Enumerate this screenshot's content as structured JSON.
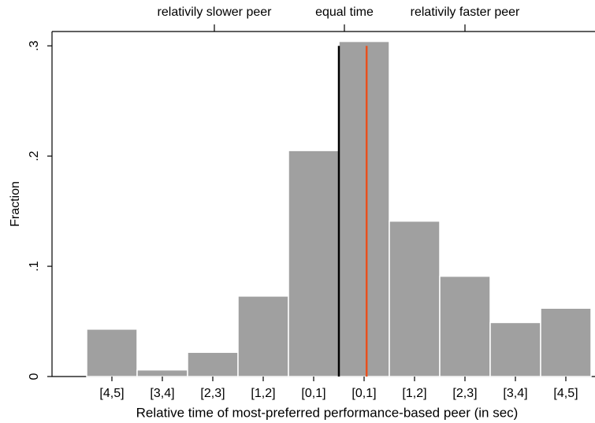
{
  "chart_data": {
    "type": "bar",
    "x_label": "Relative time of most-preferred performance-based peer (in sec)",
    "y_label": "Fraction",
    "top_labels": [
      "relativily slower peer",
      "equal time",
      "relativily faster peer"
    ],
    "categories": [
      "[4,5]",
      "[3,4]",
      "[2,3]",
      "[1,2]",
      "[0,1]",
      "[0,1]",
      "[1,2]",
      "[2,3]",
      "[3,4]",
      "[4,5]"
    ],
    "values": [
      0.043,
      0.006,
      0.022,
      0.073,
      0.205,
      0.304,
      0.141,
      0.091,
      0.049,
      0.062
    ],
    "color": "#a0a0a0",
    "ylim": [
      0,
      0.313
    ],
    "yticks": [
      0,
      {
        "value": 0.1,
        "label": ".1"
      },
      {
        "value": 0.2,
        "label": ".2"
      },
      {
        "value": 0.3,
        "label": ".3"
      }
    ],
    "vlines": [
      {
        "color": "#000000",
        "y_end": 0.3
      },
      {
        "color": "#e8501e",
        "y_end": 0.3
      }
    ]
  }
}
